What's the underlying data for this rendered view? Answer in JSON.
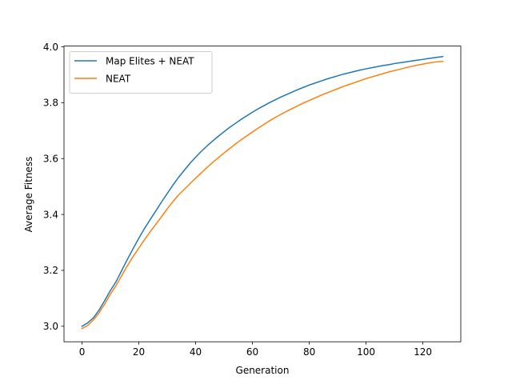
{
  "chart_data": {
    "type": "line",
    "title": "",
    "xlabel": "Generation",
    "ylabel": "Average Fitness",
    "xlim": [
      -6.35,
      133.35
    ],
    "ylim": [
      2.9445,
      4.0025
    ],
    "xticks": [
      0,
      20,
      40,
      60,
      80,
      100,
      120
    ],
    "yticks": [
      3.0,
      3.2,
      3.4,
      3.6,
      3.8,
      4.0
    ],
    "xtick_labels": [
      "0",
      "20",
      "40",
      "60",
      "80",
      "100",
      "120"
    ],
    "ytick_labels": [
      "3.0",
      "3.2",
      "3.4",
      "3.6",
      "3.8",
      "4.0"
    ],
    "grid": false,
    "legend_position": "top-left",
    "series": [
      {
        "name": "Map Elites + NEAT",
        "color": "#1f77b4",
        "points": [
          [
            0,
            3.0
          ],
          [
            2,
            3.012
          ],
          [
            4,
            3.03
          ],
          [
            6,
            3.058
          ],
          [
            8,
            3.092
          ],
          [
            10,
            3.128
          ],
          [
            12,
            3.16
          ],
          [
            14,
            3.2
          ],
          [
            16,
            3.24
          ],
          [
            18,
            3.278
          ],
          [
            20,
            3.315
          ],
          [
            22,
            3.35
          ],
          [
            24,
            3.382
          ],
          [
            26,
            3.413
          ],
          [
            28,
            3.445
          ],
          [
            30,
            3.475
          ],
          [
            32,
            3.505
          ],
          [
            34,
            3.533
          ],
          [
            36,
            3.558
          ],
          [
            38,
            3.583
          ],
          [
            40,
            3.605
          ],
          [
            42,
            3.626
          ],
          [
            44,
            3.645
          ],
          [
            46,
            3.663
          ],
          [
            48,
            3.68
          ],
          [
            50,
            3.696
          ],
          [
            52,
            3.712
          ],
          [
            54,
            3.726
          ],
          [
            56,
            3.74
          ],
          [
            58,
            3.753
          ],
          [
            60,
            3.766
          ],
          [
            62,
            3.778
          ],
          [
            64,
            3.789
          ],
          [
            66,
            3.8
          ],
          [
            68,
            3.81
          ],
          [
            70,
            3.82
          ],
          [
            72,
            3.829
          ],
          [
            74,
            3.838
          ],
          [
            76,
            3.847
          ],
          [
            78,
            3.855
          ],
          [
            80,
            3.863
          ],
          [
            82,
            3.87
          ],
          [
            84,
            3.877
          ],
          [
            86,
            3.884
          ],
          [
            88,
            3.89
          ],
          [
            90,
            3.896
          ],
          [
            92,
            3.902
          ],
          [
            94,
            3.907
          ],
          [
            96,
            3.912
          ],
          [
            98,
            3.917
          ],
          [
            100,
            3.921
          ],
          [
            102,
            3.925
          ],
          [
            104,
            3.929
          ],
          [
            106,
            3.933
          ],
          [
            108,
            3.936
          ],
          [
            110,
            3.94
          ],
          [
            112,
            3.943
          ],
          [
            114,
            3.946
          ],
          [
            116,
            3.949
          ],
          [
            118,
            3.952
          ],
          [
            120,
            3.955
          ],
          [
            122,
            3.958
          ],
          [
            124,
            3.961
          ],
          [
            127,
            3.965
          ]
        ]
      },
      {
        "name": "NEAT",
        "color": "#ff7f0e",
        "points": [
          [
            0,
            2.992
          ],
          [
            2,
            3.003
          ],
          [
            4,
            3.022
          ],
          [
            6,
            3.048
          ],
          [
            8,
            3.08
          ],
          [
            10,
            3.115
          ],
          [
            12,
            3.146
          ],
          [
            14,
            3.182
          ],
          [
            16,
            3.217
          ],
          [
            18,
            3.25
          ],
          [
            20,
            3.28
          ],
          [
            22,
            3.31
          ],
          [
            24,
            3.338
          ],
          [
            26,
            3.365
          ],
          [
            28,
            3.392
          ],
          [
            30,
            3.42
          ],
          [
            32,
            3.446
          ],
          [
            34,
            3.47
          ],
          [
            36,
            3.49
          ],
          [
            38,
            3.51
          ],
          [
            40,
            3.53
          ],
          [
            42,
            3.549
          ],
          [
            44,
            3.568
          ],
          [
            46,
            3.586
          ],
          [
            48,
            3.603
          ],
          [
            50,
            3.62
          ],
          [
            52,
            3.636
          ],
          [
            54,
            3.652
          ],
          [
            56,
            3.667
          ],
          [
            58,
            3.681
          ],
          [
            60,
            3.695
          ],
          [
            62,
            3.709
          ],
          [
            64,
            3.722
          ],
          [
            66,
            3.735
          ],
          [
            68,
            3.747
          ],
          [
            70,
            3.758
          ],
          [
            72,
            3.769
          ],
          [
            74,
            3.779
          ],
          [
            76,
            3.789
          ],
          [
            78,
            3.799
          ],
          [
            80,
            3.808
          ],
          [
            82,
            3.817
          ],
          [
            84,
            3.826
          ],
          [
            86,
            3.834
          ],
          [
            88,
            3.842
          ],
          [
            90,
            3.85
          ],
          [
            92,
            3.858
          ],
          [
            94,
            3.865
          ],
          [
            96,
            3.872
          ],
          [
            98,
            3.879
          ],
          [
            100,
            3.886
          ],
          [
            102,
            3.892
          ],
          [
            104,
            3.898
          ],
          [
            106,
            3.904
          ],
          [
            108,
            3.91
          ],
          [
            110,
            3.915
          ],
          [
            112,
            3.92
          ],
          [
            114,
            3.925
          ],
          [
            116,
            3.93
          ],
          [
            118,
            3.934
          ],
          [
            120,
            3.938
          ],
          [
            122,
            3.942
          ],
          [
            124,
            3.945
          ],
          [
            127,
            3.948
          ]
        ]
      }
    ]
  }
}
